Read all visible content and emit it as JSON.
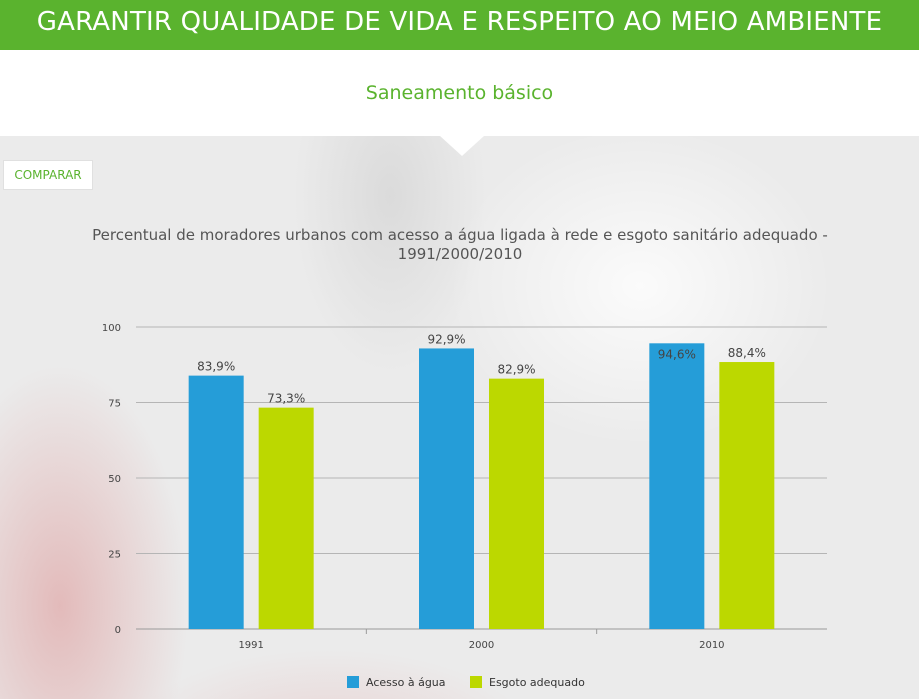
{
  "header": {
    "title": "GARANTIR QUALIDADE DE VIDA E RESPEITO AO MEIO AMBIENTE"
  },
  "section": {
    "subtitle": "Saneamento básico"
  },
  "toolbar": {
    "compare_label": "COMPARAR"
  },
  "colors": {
    "header_green": "#5ab32e",
    "series_agua": "#259dd8",
    "series_esgoto": "#bcd800"
  },
  "chart_data": {
    "type": "bar",
    "title": "Percentual de moradores urbanos com acesso a água ligada à rede e esgoto sanitário adequado - 1991/2000/2010",
    "categories": [
      "1991",
      "2000",
      "2010"
    ],
    "series": [
      {
        "name": "Acesso à água",
        "color": "#259dd8",
        "values": [
          83.9,
          92.9,
          94.6
        ],
        "labels": [
          "83,9%",
          "92,9%",
          "94,6%"
        ]
      },
      {
        "name": "Esgoto adequado",
        "color": "#bcd800",
        "values": [
          73.3,
          82.9,
          88.4
        ],
        "labels": [
          "73,3%",
          "82,9%",
          "88,4%"
        ]
      }
    ],
    "ylim": [
      0,
      100
    ],
    "yticks": [
      0,
      25,
      50,
      75,
      100
    ],
    "grid": true,
    "legend": "bottom"
  }
}
